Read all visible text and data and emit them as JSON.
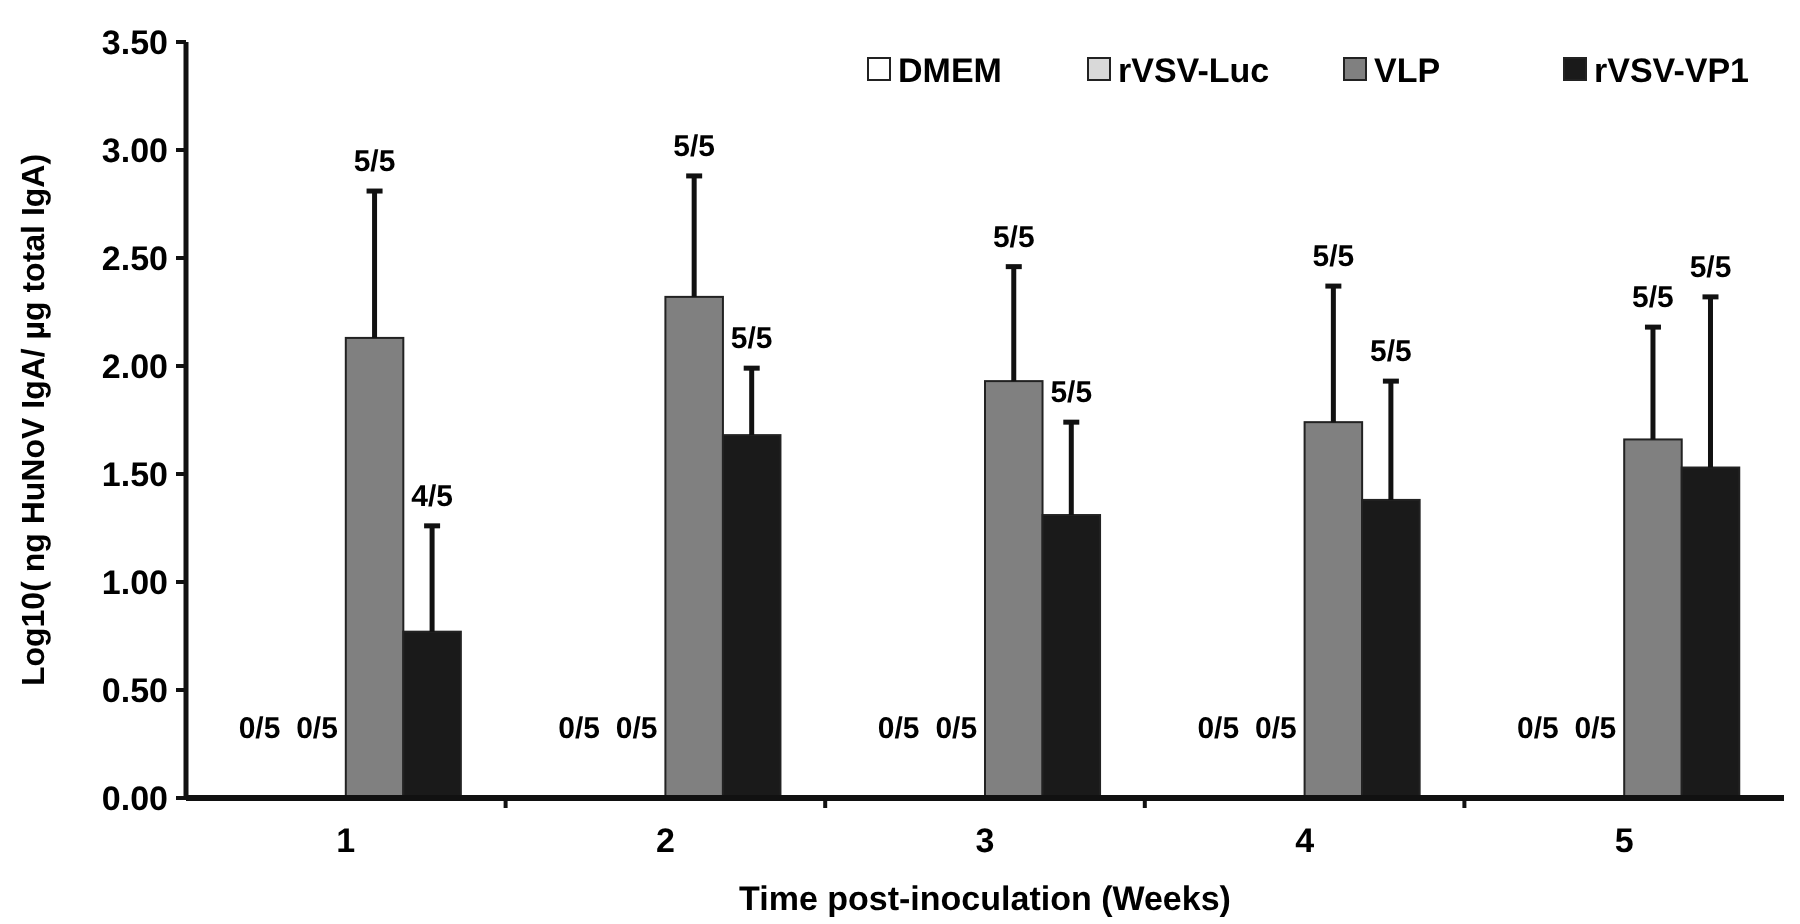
{
  "chart_data": {
    "type": "bar",
    "xlabel": "Time post-inoculation (Weeks)",
    "ylabel": "Log10( ng HuNoV IgA/ µg total IgA)",
    "categories": [
      "1",
      "2",
      "3",
      "4",
      "5"
    ],
    "ylim": [
      0,
      3.5
    ],
    "yticks": [
      {
        "value": 0,
        "label": "0.00"
      },
      {
        "value": 0.5,
        "label": "0.50"
      },
      {
        "value": 1,
        "label": "1.00"
      },
      {
        "value": 1.5,
        "label": "1.50"
      },
      {
        "value": 2,
        "label": "2.00"
      },
      {
        "value": 2.5,
        "label": "2.50"
      },
      {
        "value": 3,
        "label": "3.00"
      },
      {
        "value": 3.5,
        "label": "3.50"
      }
    ],
    "grid": false,
    "legend": "top right",
    "series": [
      {
        "name": "DMEM",
        "color": "#ffffff",
        "values": [
          0,
          0,
          0,
          0,
          0
        ]
      },
      {
        "name": "rVSV-Luc",
        "color": "#d9d9d9",
        "values": [
          0,
          0,
          0,
          0,
          0
        ]
      },
      {
        "name": "VLP",
        "color": "#808080",
        "values": [
          2.13,
          2.32,
          1.93,
          1.74,
          1.66
        ],
        "errors": [
          [
            2.13,
            2.81
          ],
          [
            2.32,
            2.88
          ],
          [
            1.93,
            2.46
          ],
          [
            1.74,
            2.37
          ],
          [
            1.66,
            2.18
          ]
        ]
      },
      {
        "name": "rVSV-VP1",
        "color": "#1a1a1a",
        "values": [
          0.77,
          1.68,
          1.31,
          1.38,
          1.53
        ],
        "errors": [
          [
            0.77,
            1.26
          ],
          [
            1.68,
            1.99
          ],
          [
            1.31,
            1.74
          ],
          [
            1.38,
            1.93
          ],
          [
            1.53,
            2.32
          ]
        ]
      }
    ],
    "annotations": [
      "0/5",
      "0/5",
      "5/5",
      "4/5",
      "0/5",
      "0/5",
      "5/5",
      "5/5",
      "0/5",
      "0/5",
      "5/5",
      "5/5",
      "0/5",
      "0/5",
      "5/5",
      "5/5",
      "0/5",
      "0/5",
      "5/5",
      "5/5"
    ]
  }
}
